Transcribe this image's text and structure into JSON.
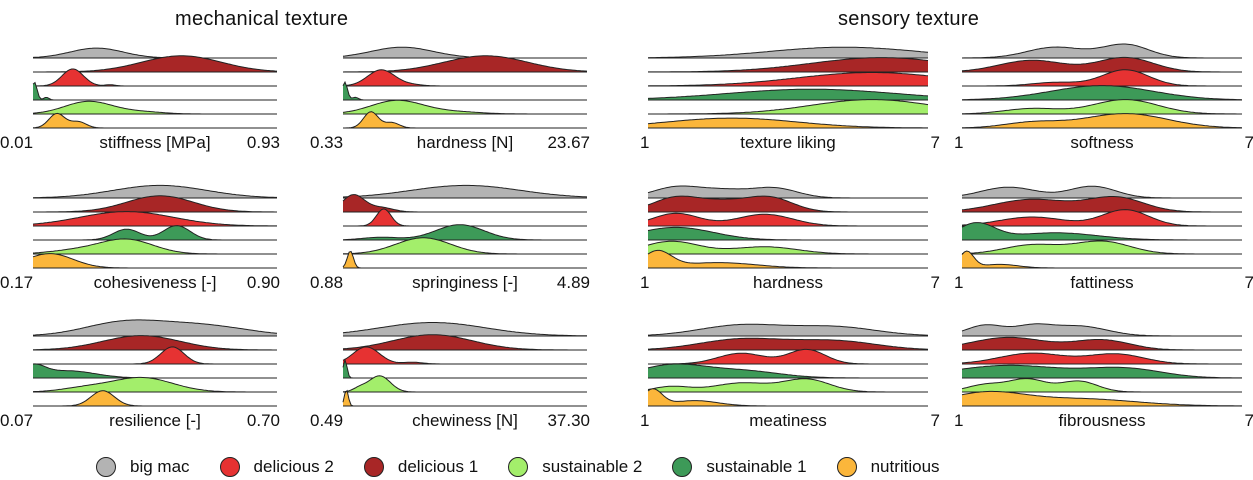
{
  "titles": {
    "left": "mechanical texture",
    "right": "sensory texture"
  },
  "colors": {
    "big_mac": "#b3b3b3",
    "delicious_2": "#e63232",
    "delicious_1": "#a82626",
    "sustainable_2": "#a3ee6b",
    "sustainable_1": "#3d9a58",
    "nutritious": "#fbb63b",
    "stroke": "#222222"
  },
  "legend": [
    {
      "key": "big_mac",
      "label": "big mac"
    },
    {
      "key": "delicious_2",
      "label": "delicious 2"
    },
    {
      "key": "delicious_1",
      "label": "delicious 1"
    },
    {
      "key": "sustainable_2",
      "label": "sustainable 2"
    },
    {
      "key": "sustainable_1",
      "label": "sustainable 1"
    },
    {
      "key": "nutritious",
      "label": "nutritious"
    }
  ],
  "chart_data": [
    {
      "type": "area",
      "section": "mechanical texture",
      "xlabel": "stiffness [MPa]",
      "xlim": [
        0.01,
        0.93
      ],
      "series": [
        {
          "name": "big mac",
          "peaks": [
            [
              0.25,
              0.1,
              0.55
            ]
          ]
        },
        {
          "name": "delicious 1",
          "peaks": [
            [
              0.57,
              0.15,
              0.9
            ]
          ]
        },
        {
          "name": "delicious 2",
          "peaks": [
            [
              0.16,
              0.04,
              0.95
            ],
            [
              0.3,
              0.02,
              0.07
            ]
          ]
        },
        {
          "name": "sustainable 1",
          "peaks": [
            [
              0.015,
              0.01,
              1.0
            ],
            [
              0.06,
              0.01,
              0.15
            ]
          ]
        },
        {
          "name": "sustainable 2",
          "peaks": [
            [
              0.22,
              0.09,
              0.7
            ],
            [
              0.42,
              0.08,
              0.12
            ]
          ]
        },
        {
          "name": "nutritious",
          "peaks": [
            [
              0.1,
              0.03,
              0.8
            ],
            [
              0.18,
              0.03,
              0.35
            ]
          ]
        }
      ]
    },
    {
      "type": "area",
      "section": "mechanical texture",
      "xlabel": "hardness [N]",
      "xlim": [
        0.33,
        23.67
      ],
      "series": [
        {
          "name": "big mac",
          "peaks": [
            [
              6.0,
              3.0,
              0.6
            ]
          ]
        },
        {
          "name": "delicious 1",
          "peaks": [
            [
              14.0,
              4.0,
              0.9
            ]
          ]
        },
        {
          "name": "delicious 2",
          "peaks": [
            [
              4.0,
              1.3,
              0.9
            ],
            [
              7.0,
              1.0,
              0.07
            ]
          ]
        },
        {
          "name": "sustainable 1",
          "peaks": [
            [
              0.5,
              0.25,
              1.0
            ],
            [
              1.5,
              0.3,
              0.15
            ]
          ]
        },
        {
          "name": "sustainable 2",
          "peaks": [
            [
              5.5,
              2.5,
              0.75
            ],
            [
              11.0,
              2.5,
              0.12
            ]
          ]
        },
        {
          "name": "nutritious",
          "peaks": [
            [
              3.0,
              0.7,
              0.9
            ],
            [
              5.0,
              0.7,
              0.3
            ]
          ]
        }
      ]
    },
    {
      "type": "area",
      "section": "mechanical texture",
      "xlabel": "cohesiveness [-]",
      "xlim": [
        0.17,
        0.9
      ],
      "series": [
        {
          "name": "big mac",
          "peaks": [
            [
              0.55,
              0.14,
              0.7
            ]
          ]
        },
        {
          "name": "delicious 1",
          "peaks": [
            [
              0.55,
              0.1,
              0.9
            ]
          ]
        },
        {
          "name": "delicious 2",
          "peaks": [
            [
              0.45,
              0.14,
              0.8
            ]
          ]
        },
        {
          "name": "sustainable 1",
          "peaks": [
            [
              0.45,
              0.04,
              0.6
            ],
            [
              0.6,
              0.04,
              0.8
            ]
          ]
        },
        {
          "name": "sustainable 2",
          "peaks": [
            [
              0.45,
              0.08,
              0.8
            ],
            [
              0.3,
              0.08,
              0.2
            ]
          ]
        },
        {
          "name": "nutritious",
          "peaks": [
            [
              0.22,
              0.07,
              0.8
            ]
          ]
        }
      ]
    },
    {
      "type": "area",
      "section": "mechanical texture",
      "xlabel": "springiness [-]",
      "xlim": [
        0.88,
        4.89
      ],
      "series": [
        {
          "name": "big mac",
          "peaks": [
            [
              2.9,
              0.9,
              0.7
            ]
          ]
        },
        {
          "name": "delicious 1",
          "peaks": [
            [
              1.05,
              0.18,
              0.95
            ],
            [
              1.5,
              0.2,
              0.25
            ]
          ]
        },
        {
          "name": "delicious 2",
          "peaks": [
            [
              1.55,
              0.12,
              0.95
            ]
          ]
        },
        {
          "name": "sustainable 1",
          "peaks": [
            [
              2.8,
              0.4,
              0.85
            ],
            [
              1.5,
              0.3,
              0.15
            ]
          ]
        },
        {
          "name": "sustainable 2",
          "peaks": [
            [
              2.2,
              0.45,
              0.9
            ]
          ]
        },
        {
          "name": "nutritious",
          "peaks": [
            [
              1.0,
              0.05,
              0.95
            ]
          ]
        }
      ]
    },
    {
      "type": "area",
      "section": "mechanical texture",
      "xlabel": "resilience [-]",
      "xlim": [
        0.07,
        0.7
      ],
      "series": [
        {
          "name": "big mac",
          "peaks": [
            [
              0.3,
              0.1,
              0.7
            ],
            [
              0.5,
              0.12,
              0.6
            ]
          ]
        },
        {
          "name": "delicious 1",
          "peaks": [
            [
              0.35,
              0.1,
              0.8
            ]
          ]
        },
        {
          "name": "delicious 2",
          "peaks": [
            [
              0.43,
              0.03,
              0.95
            ]
          ]
        },
        {
          "name": "sustainable 1",
          "peaks": [
            [
              0.07,
              0.03,
              0.6
            ],
            [
              0.16,
              0.07,
              0.4
            ]
          ]
        },
        {
          "name": "sustainable 2",
          "peaks": [
            [
              0.35,
              0.08,
              0.8
            ],
            [
              0.2,
              0.06,
              0.2
            ]
          ]
        },
        {
          "name": "nutritious",
          "peaks": [
            [
              0.25,
              0.03,
              0.85
            ]
          ]
        }
      ]
    },
    {
      "type": "area",
      "section": "mechanical texture",
      "xlabel": "chewiness [N]",
      "xlim": [
        0.49,
        37.3
      ],
      "series": [
        {
          "name": "big mac",
          "peaks": [
            [
              14.0,
              8.0,
              0.75
            ]
          ]
        },
        {
          "name": "delicious 1",
          "peaks": [
            [
              14.0,
              6.0,
              0.85
            ]
          ]
        },
        {
          "name": "delicious 2",
          "peaks": [
            [
              4.0,
              2.0,
              0.95
            ],
            [
              11.0,
              1.5,
              0.1
            ]
          ]
        },
        {
          "name": "sustainable 1",
          "peaks": [
            [
              0.8,
              0.3,
              1.0
            ]
          ]
        },
        {
          "name": "sustainable 2",
          "peaks": [
            [
              6.0,
              1.6,
              0.9
            ],
            [
              3.0,
              1.0,
              0.2
            ]
          ]
        },
        {
          "name": "nutritious",
          "peaks": [
            [
              1.0,
              0.3,
              0.9
            ]
          ]
        }
      ]
    },
    {
      "type": "area",
      "section": "sensory texture",
      "xlabel": "texture liking",
      "xlim": [
        1,
        7
      ],
      "series": [
        {
          "name": "big mac",
          "peaks": [
            [
              5.2,
              1.6,
              0.6
            ]
          ]
        },
        {
          "name": "delicious 1",
          "peaks": [
            [
              6.0,
              1.5,
              0.8
            ]
          ]
        },
        {
          "name": "delicious 2",
          "peaks": [
            [
              5.8,
              1.6,
              0.75
            ]
          ]
        },
        {
          "name": "sustainable 1",
          "peaks": [
            [
              4.5,
              1.8,
              0.6
            ]
          ]
        },
        {
          "name": "sustainable 2",
          "peaks": [
            [
              5.8,
              1.3,
              0.8
            ]
          ]
        },
        {
          "name": "nutritious",
          "peaks": [
            [
              2.8,
              1.4,
              0.55
            ]
          ]
        }
      ]
    },
    {
      "type": "area",
      "section": "sensory texture",
      "xlabel": "softness",
      "xlim": [
        1,
        7
      ],
      "series": [
        {
          "name": "big mac",
          "peaks": [
            [
              3.0,
              0.6,
              0.6
            ],
            [
              4.5,
              0.5,
              0.75
            ]
          ]
        },
        {
          "name": "delicious 1",
          "peaks": [
            [
              2.5,
              0.7,
              0.65
            ],
            [
              4.5,
              0.6,
              0.8
            ]
          ]
        },
        {
          "name": "delicious 2",
          "peaks": [
            [
              4.5,
              0.5,
              0.9
            ],
            [
              3.0,
              0.5,
              0.2
            ]
          ]
        },
        {
          "name": "sustainable 1",
          "peaks": [
            [
              4.0,
              1.1,
              0.8
            ]
          ]
        },
        {
          "name": "sustainable 2",
          "peaks": [
            [
              4.5,
              0.7,
              0.8
            ],
            [
              2.5,
              0.6,
              0.3
            ]
          ]
        },
        {
          "name": "nutritious",
          "peaks": [
            [
              4.5,
              0.9,
              0.8
            ],
            [
              2.5,
              0.6,
              0.3
            ]
          ]
        }
      ]
    },
    {
      "type": "area",
      "section": "sensory texture",
      "xlabel": "hardness",
      "xlim": [
        1,
        7
      ],
      "series": [
        {
          "name": "big mac",
          "peaks": [
            [
              1.6,
              0.5,
              0.6
            ],
            [
              3.7,
              0.5,
              0.55
            ],
            [
              2.6,
              0.5,
              0.4
            ]
          ]
        },
        {
          "name": "delicious 1",
          "peaks": [
            [
              1.6,
              0.5,
              0.8
            ],
            [
              3.6,
              0.5,
              0.8
            ],
            [
              2.6,
              0.5,
              0.5
            ]
          ]
        },
        {
          "name": "delicious 2",
          "peaks": [
            [
              1.6,
              0.5,
              0.7
            ],
            [
              3.5,
              0.6,
              0.65
            ]
          ]
        },
        {
          "name": "sustainable 1",
          "peaks": [
            [
              1.6,
              0.8,
              0.7
            ]
          ]
        },
        {
          "name": "sustainable 2",
          "peaks": [
            [
              1.5,
              0.6,
              0.7
            ],
            [
              3.5,
              0.7,
              0.4
            ]
          ]
        },
        {
          "name": "nutritious",
          "peaks": [
            [
              1.2,
              0.3,
              0.9
            ],
            [
              2.5,
              0.8,
              0.3
            ]
          ]
        }
      ]
    },
    {
      "type": "area",
      "section": "sensory texture",
      "xlabel": "fattiness",
      "xlim": [
        1,
        7
      ],
      "series": [
        {
          "name": "big mac",
          "peaks": [
            [
              2.0,
              0.6,
              0.6
            ],
            [
              3.8,
              0.5,
              0.65
            ]
          ]
        },
        {
          "name": "delicious 1",
          "peaks": [
            [
              2.5,
              0.8,
              0.7
            ],
            [
              4.3,
              0.6,
              0.8
            ]
          ]
        },
        {
          "name": "delicious 2",
          "peaks": [
            [
              4.5,
              0.5,
              0.9
            ],
            [
              2.5,
              0.7,
              0.5
            ]
          ]
        },
        {
          "name": "sustainable 1",
          "peaks": [
            [
              1.3,
              0.4,
              0.9
            ],
            [
              3.0,
              0.9,
              0.4
            ]
          ]
        },
        {
          "name": "sustainable 2",
          "peaks": [
            [
              4.0,
              0.6,
              0.7
            ],
            [
              2.5,
              0.6,
              0.5
            ]
          ]
        },
        {
          "name": "nutritious",
          "peaks": [
            [
              1.1,
              0.15,
              0.9
            ],
            [
              1.8,
              0.4,
              0.2
            ]
          ]
        }
      ]
    },
    {
      "type": "area",
      "section": "sensory texture",
      "xlabel": "meatiness",
      "xlim": [
        1,
        7
      ],
      "series": [
        {
          "name": "big mac",
          "peaks": [
            [
              3.0,
              0.9,
              0.6
            ],
            [
              5.0,
              0.9,
              0.5
            ]
          ]
        },
        {
          "name": "delicious 1",
          "peaks": [
            [
              3.0,
              0.9,
              0.6
            ],
            [
              5.0,
              0.9,
              0.5
            ]
          ]
        },
        {
          "name": "delicious 2",
          "peaks": [
            [
              4.4,
              0.4,
              0.8
            ],
            [
              3.0,
              0.5,
              0.6
            ]
          ]
        },
        {
          "name": "sustainable 1",
          "peaks": [
            [
              1.5,
              0.7,
              0.7
            ],
            [
              3.0,
              0.8,
              0.4
            ]
          ]
        },
        {
          "name": "sustainable 2",
          "peaks": [
            [
              4.4,
              0.5,
              0.7
            ],
            [
              3.0,
              0.6,
              0.5
            ],
            [
              1.5,
              0.4,
              0.3
            ]
          ]
        },
        {
          "name": "nutritious",
          "peaks": [
            [
              1.1,
              0.2,
              0.9
            ],
            [
              2.0,
              0.5,
              0.3
            ]
          ]
        }
      ]
    },
    {
      "type": "area",
      "section": "sensory texture",
      "xlabel": "fibrousness",
      "xlim": [
        1,
        7
      ],
      "series": [
        {
          "name": "big mac",
          "peaks": [
            [
              1.5,
              0.4,
              0.6
            ],
            [
              3.5,
              0.6,
              0.55
            ],
            [
              2.5,
              0.4,
              0.5
            ]
          ]
        },
        {
          "name": "delicious 1",
          "peaks": [
            [
              2.0,
              0.8,
              0.7
            ],
            [
              4.0,
              0.6,
              0.55
            ]
          ]
        },
        {
          "name": "delicious 2",
          "peaks": [
            [
              2.5,
              0.7,
              0.6
            ],
            [
              4.3,
              0.6,
              0.55
            ]
          ]
        },
        {
          "name": "sustainable 1",
          "peaks": [
            [
              2.0,
              1.2,
              0.7
            ],
            [
              4.5,
              0.8,
              0.5
            ]
          ]
        },
        {
          "name": "sustainable 2",
          "peaks": [
            [
              2.4,
              0.4,
              0.7
            ],
            [
              3.5,
              0.4,
              0.6
            ],
            [
              1.5,
              0.4,
              0.4
            ]
          ]
        },
        {
          "name": "nutritious",
          "peaks": [
            [
              1.5,
              0.8,
              0.7
            ],
            [
              3.5,
              1.2,
              0.4
            ]
          ]
        }
      ]
    }
  ]
}
